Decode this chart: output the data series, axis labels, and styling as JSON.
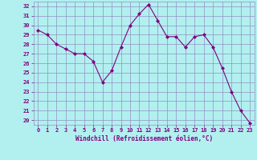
{
  "x": [
    0,
    1,
    2,
    3,
    4,
    5,
    6,
    7,
    8,
    9,
    10,
    11,
    12,
    13,
    14,
    15,
    16,
    17,
    18,
    19,
    20,
    21,
    22,
    23
  ],
  "y": [
    29.5,
    29.0,
    28.0,
    27.5,
    27.0,
    27.0,
    26.2,
    24.0,
    25.2,
    27.7,
    30.0,
    31.2,
    32.2,
    30.5,
    28.8,
    28.8,
    27.7,
    28.8,
    29.0,
    27.7,
    25.5,
    23.0,
    21.0,
    19.7
  ],
  "line_color": "#800080",
  "marker": "D",
  "marker_size": 2,
  "bg_color": "#b2f0f0",
  "grid_color": "#9090c0",
  "xlabel": "Windchill (Refroidissement éolien,°C)",
  "ylabel_ticks": [
    20,
    21,
    22,
    23,
    24,
    25,
    26,
    27,
    28,
    29,
    30,
    31,
    32
  ],
  "ylim": [
    19.5,
    32.5
  ],
  "xlim": [
    -0.5,
    23.5
  ]
}
